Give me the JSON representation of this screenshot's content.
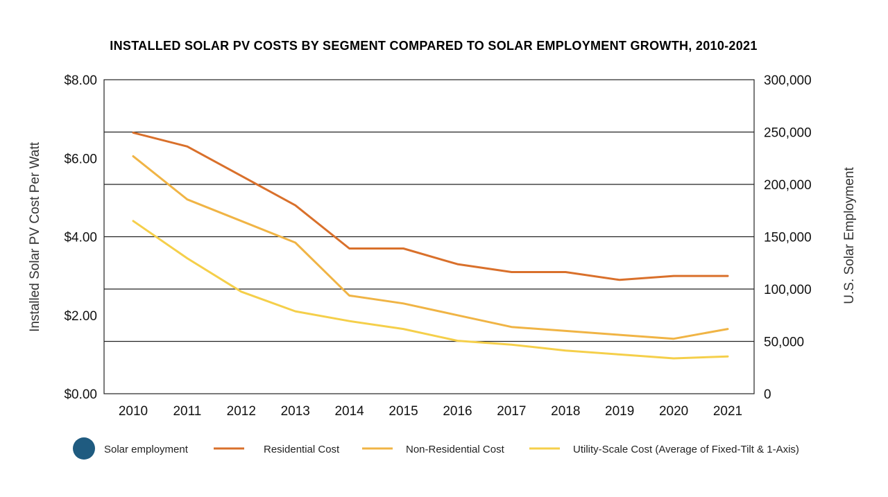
{
  "chart_data": {
    "type": "line",
    "title": "INSTALLED SOLAR PV COSTS BY SEGMENT COMPARED TO SOLAR EMPLOYMENT GROWTH, 2010-2021",
    "ylabel": "Installed Solar PV Cost Per Watt",
    "y2label": "U.S. Solar Employment",
    "ylim": [
      0,
      8
    ],
    "y2lim": [
      0,
      300000
    ],
    "yticks": [
      "$8.00",
      "$6.00",
      "$4.00",
      "$2.00",
      "$0.00"
    ],
    "y2ticks": [
      "300,000",
      "250,000",
      "200,000",
      "150,000",
      "100,000",
      "50,000",
      "0"
    ],
    "categories": [
      "2010",
      "2011",
      "2012",
      "2013",
      "2014",
      "2015",
      "2016",
      "2017",
      "2018",
      "2019",
      "2020",
      "2021"
    ],
    "series": [
      {
        "name": "Residential Cost",
        "color": "#d9702b",
        "values": [
          6.65,
          6.3,
          5.55,
          4.8,
          3.7,
          3.7,
          3.3,
          3.1,
          3.1,
          2.9,
          3.0,
          3.0
        ]
      },
      {
        "name": "Non-Residential Cost",
        "color": "#f0b445",
        "values": [
          6.05,
          4.95,
          4.4,
          3.85,
          2.5,
          2.3,
          2.0,
          1.7,
          1.6,
          1.5,
          1.4,
          1.65
        ]
      },
      {
        "name": "Utility-Scale Cost (Average of Fixed-Tilt & 1-Axis)",
        "color": "#f5cf4a",
        "values": [
          4.4,
          3.45,
          2.6,
          2.1,
          1.85,
          1.65,
          1.35,
          1.25,
          1.1,
          1.0,
          0.9,
          0.95
        ]
      }
    ],
    "employment_legend": {
      "name": "Solar employment",
      "color": "#1f5b80"
    },
    "grid_y2": [
      50000,
      100000,
      150000,
      200000,
      250000
    ],
    "legend_position": "bottom"
  }
}
